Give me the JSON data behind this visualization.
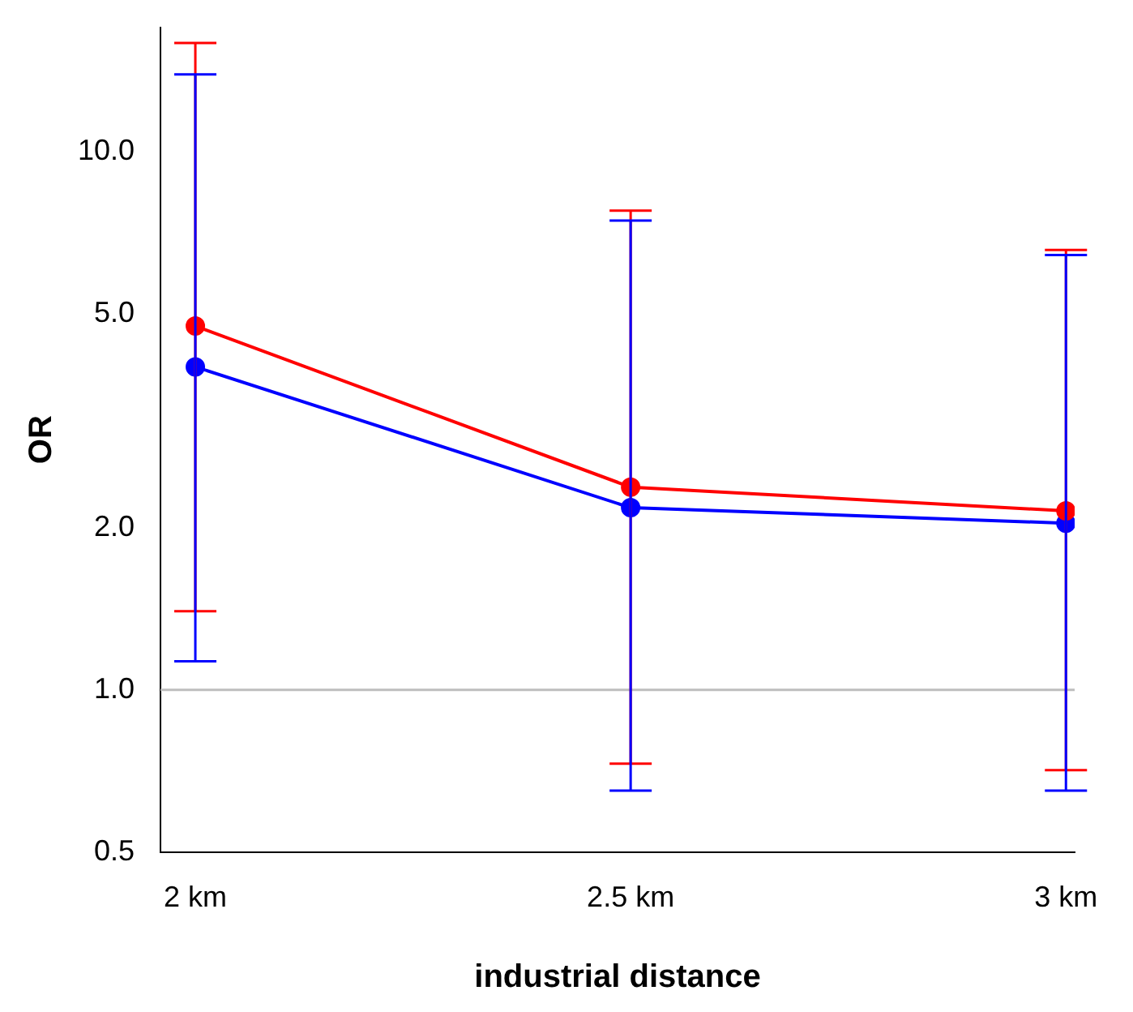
{
  "chart_data": {
    "type": "line",
    "xlabel": "industrial distance",
    "ylabel": "OR",
    "categories": [
      "2 km",
      "2.5 km",
      "3 km"
    ],
    "series": [
      {
        "color": "#ff0000",
        "values": [
          4.74,
          2.38,
          2.15
        ],
        "errors": [
          [
            1.4,
            15.9
          ],
          [
            0.73,
            7.76
          ],
          [
            0.71,
            6.56
          ]
        ]
      },
      {
        "color": "#0000ff",
        "values": [
          3.98,
          2.18,
          2.04
        ],
        "errors": [
          [
            1.13,
            13.9
          ],
          [
            0.65,
            7.44
          ],
          [
            0.65,
            6.42
          ]
        ]
      }
    ],
    "log": "y",
    "ylim": [
      0.5,
      17
    ],
    "yticks": [
      {
        "value": 0.5,
        "label": "0.5"
      },
      {
        "value": 1,
        "label": "1.0"
      },
      {
        "value": 2,
        "label": "2.0"
      },
      {
        "value": 5,
        "label": "5.0"
      },
      {
        "value": 10,
        "label": "10.0"
      }
    ],
    "ref_lines": [
      {
        "axis": "y",
        "value": 1,
        "color": "#bebebe"
      }
    ],
    "grid": false,
    "legend": false,
    "marker": "circle",
    "line_style": "solid"
  }
}
